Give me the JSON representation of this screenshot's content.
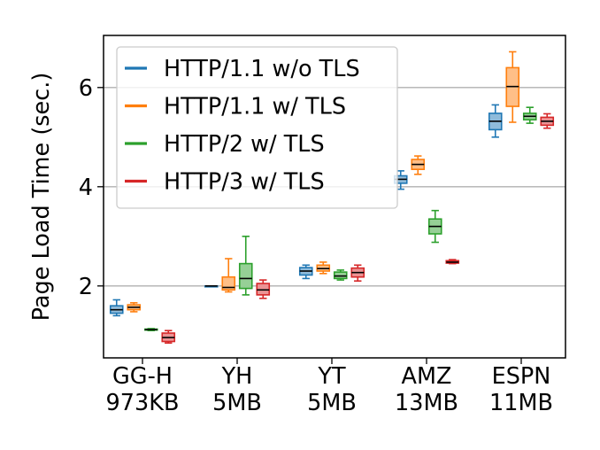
{
  "chart_data": {
    "type": "box",
    "title": "",
    "xlabel": "",
    "ylabel": "Page Load Time (sec.)",
    "ylim": [
      0.55,
      7.05
    ],
    "yticks": [
      2,
      4,
      6
    ],
    "grid": "y",
    "legend_position": "top-left",
    "categories": [
      {
        "name": "GG-H",
        "size": "973KB"
      },
      {
        "name": "YH",
        "size": "5MB"
      },
      {
        "name": "YT",
        "size": "5MB"
      },
      {
        "name": "AMZ",
        "size": "13MB"
      },
      {
        "name": "ESPN",
        "size": "11MB"
      }
    ],
    "series": [
      {
        "name": "HTTP/1.1 w/o TLS",
        "color": "#1f77b4",
        "boxes": [
          {
            "min": 1.4,
            "q1": 1.45,
            "median": 1.52,
            "q3": 1.6,
            "max": 1.72
          },
          {
            "min": 2.0,
            "q1": 2.0,
            "median": 2.0,
            "q3": 2.0,
            "max": 2.0
          },
          {
            "min": 2.15,
            "q1": 2.22,
            "median": 2.3,
            "q3": 2.37,
            "max": 2.42
          },
          {
            "min": 3.95,
            "q1": 4.07,
            "median": 4.15,
            "q3": 4.22,
            "max": 4.32
          },
          {
            "min": 5.0,
            "q1": 5.15,
            "median": 5.32,
            "q3": 5.48,
            "max": 5.65
          }
        ]
      },
      {
        "name": "HTTP/1.1 w/ TLS",
        "color": "#ff7f0e",
        "boxes": [
          {
            "min": 1.48,
            "q1": 1.52,
            "median": 1.57,
            "q3": 1.62,
            "max": 1.66
          },
          {
            "min": 1.88,
            "q1": 1.92,
            "median": 1.97,
            "q3": 2.18,
            "max": 2.55
          },
          {
            "min": 2.25,
            "q1": 2.3,
            "median": 2.35,
            "q3": 2.42,
            "max": 2.48
          },
          {
            "min": 4.25,
            "q1": 4.35,
            "median": 4.45,
            "q3": 4.55,
            "max": 4.62
          },
          {
            "min": 5.3,
            "q1": 5.62,
            "median": 6.02,
            "q3": 6.4,
            "max": 6.72
          }
        ]
      },
      {
        "name": "HTTP/2 w/ TLS",
        "color": "#2ca02c",
        "boxes": [
          {
            "min": 1.1,
            "q1": 1.11,
            "median": 1.12,
            "q3": 1.13,
            "max": 1.14
          },
          {
            "min": 1.82,
            "q1": 1.95,
            "median": 2.15,
            "q3": 2.45,
            "max": 3.0
          },
          {
            "min": 2.12,
            "q1": 2.15,
            "median": 2.2,
            "q3": 2.28,
            "max": 2.32
          },
          {
            "min": 2.88,
            "q1": 3.05,
            "median": 3.2,
            "q3": 3.35,
            "max": 3.52
          },
          {
            "min": 5.28,
            "q1": 5.35,
            "median": 5.42,
            "q3": 5.48,
            "max": 5.6
          }
        ]
      },
      {
        "name": "HTTP/3 w/ TLS",
        "color": "#d62728",
        "boxes": [
          {
            "min": 0.85,
            "q1": 0.88,
            "median": 0.96,
            "q3": 1.05,
            "max": 1.1
          },
          {
            "min": 1.75,
            "q1": 1.82,
            "median": 1.92,
            "q3": 2.05,
            "max": 2.12
          },
          {
            "min": 2.1,
            "q1": 2.18,
            "median": 2.27,
            "q3": 2.36,
            "max": 2.42
          },
          {
            "min": 2.45,
            "q1": 2.46,
            "median": 2.48,
            "q3": 2.51,
            "max": 2.53
          },
          {
            "min": 5.18,
            "q1": 5.24,
            "median": 5.32,
            "q3": 5.4,
            "max": 5.47
          }
        ]
      }
    ]
  }
}
